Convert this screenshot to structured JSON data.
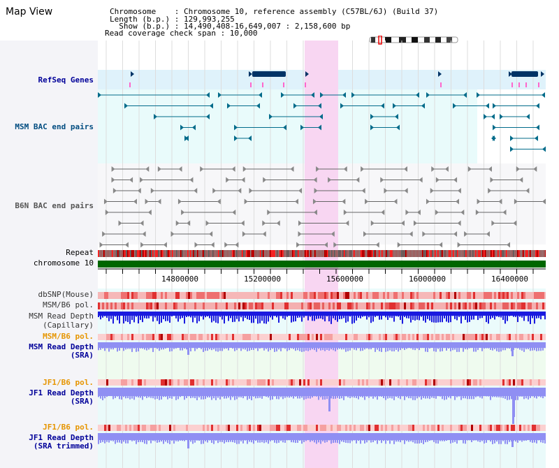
{
  "title": "Map View",
  "info": {
    "line1": "Chromosome    : Chromosome 10, reference assembly (C57BL/6J) (Build 37)",
    "line2": "Length (b.p.) : 129,993,255",
    "line3": "  Show (b.p.) : 14,490,408-16,649,007 : 2,158,600 bp",
    "line4": "Read coverage check span : 10,000"
  },
  "tracks": {
    "refseq": "RefSeq Genes",
    "msm_bac": "MSM BAC end pairs",
    "b6n_bac": "B6N BAC end pairs",
    "repeat": "Repeat",
    "chrom": "chromosome 10",
    "dbsnp": "dbSNP(Mouse)",
    "msm_b6_pol": "MSM/B6 pol.",
    "msm_depth_cap_1": "MSM Read Depth",
    "msm_depth_cap_2": "(Capillary)",
    "msm_b6_pol2": "MSM/B6 pol.",
    "msm_depth_sra_1": "MSM Read Depth",
    "msm_depth_sra_2": "(SRA)",
    "jf1_b6_pol": "JF1/B6 pol.",
    "jf1_depth_sra_1": "JF1 Read Depth",
    "jf1_depth_sra_2": "(SRA)",
    "jf1_b6_pol2": "JF1/B6 pol.",
    "jf1_depth_trim_1": "JF1 Read Depth",
    "jf1_depth_trim_2": "(SRA trimmed)"
  },
  "axis": {
    "ticks": [
      "14800000",
      "15200000",
      "15600000",
      "16000000",
      "16400000"
    ]
  },
  "colors": {
    "highlight": "#f8d6f2",
    "refseq_bg": "#dff2fb",
    "msm_bg": "#e9fbfb",
    "gene": "#003366",
    "msm_feature": "#006b8a",
    "b6n_feature": "#666666",
    "chrom_bar": "#006600",
    "depth_dark": "#1a1adf",
    "depth_light": "#8f8ff3",
    "label_blue": "#000099",
    "label_orange": "#e69500",
    "label_msm": "#004c80"
  }
}
